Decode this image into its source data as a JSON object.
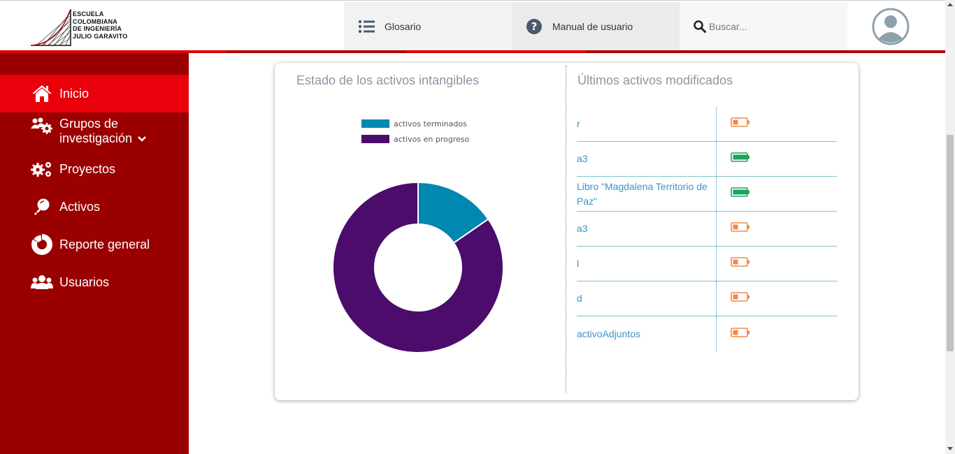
{
  "logo": {
    "lines": [
      "Escuela",
      "Colombiana",
      "de Ingeniería",
      "Julio Garavito"
    ]
  },
  "header": {
    "glosario_label": "Glosario",
    "manual_label": "Manual de usuario",
    "search_placeholder": "Buscar..."
  },
  "sidebar": {
    "items": [
      {
        "label": "Inicio",
        "icon": "home-icon"
      },
      {
        "label": "Grupos de investigación",
        "icon": "groups-icon"
      },
      {
        "label": "Proyectos",
        "icon": "gears-icon"
      },
      {
        "label": "Activos",
        "icon": "lightbulb-icon"
      },
      {
        "label": "Reporte general",
        "icon": "report-icon"
      },
      {
        "label": "Usuarios",
        "icon": "users-icon"
      }
    ],
    "grupos_line1": "Grupos de",
    "grupos_line2": "investigación"
  },
  "estado": {
    "title": "Estado de los activos intangibles",
    "legend": [
      {
        "label": "activos terminados",
        "color": "#0088b0"
      },
      {
        "label": "activos en progreso",
        "color": "#4b0c6b"
      }
    ]
  },
  "chart_data": {
    "type": "pie",
    "donut": true,
    "title": "Estado de los activos intangibles",
    "categories": [
      "activos terminados",
      "activos en progreso"
    ],
    "values": [
      2,
      11
    ],
    "colors": [
      "#0088b0",
      "#4b0c6b"
    ],
    "legend_position": "top"
  },
  "ultimos": {
    "title": "Últimos activos modificados",
    "rows": [
      {
        "name": "r",
        "status": "partial",
        "color": "#f0884a"
      },
      {
        "name": "a3",
        "status": "full",
        "color": "#1aa35a"
      },
      {
        "name": "Libro \"Magdalena Territorio de Paz\"",
        "status": "full",
        "color": "#1aa35a"
      },
      {
        "name": "a3",
        "status": "partial",
        "color": "#f0884a"
      },
      {
        "name": "l",
        "status": "partial",
        "color": "#f0884a"
      },
      {
        "name": "d",
        "status": "partial",
        "color": "#f0884a"
      },
      {
        "name": "activoAdjuntos",
        "status": "partial",
        "color": "#f0884a"
      }
    ]
  },
  "colors": {
    "sidebar_bg": "#9a0000",
    "sidebar_active": "#e8000b",
    "accent_red": "#b30000"
  }
}
